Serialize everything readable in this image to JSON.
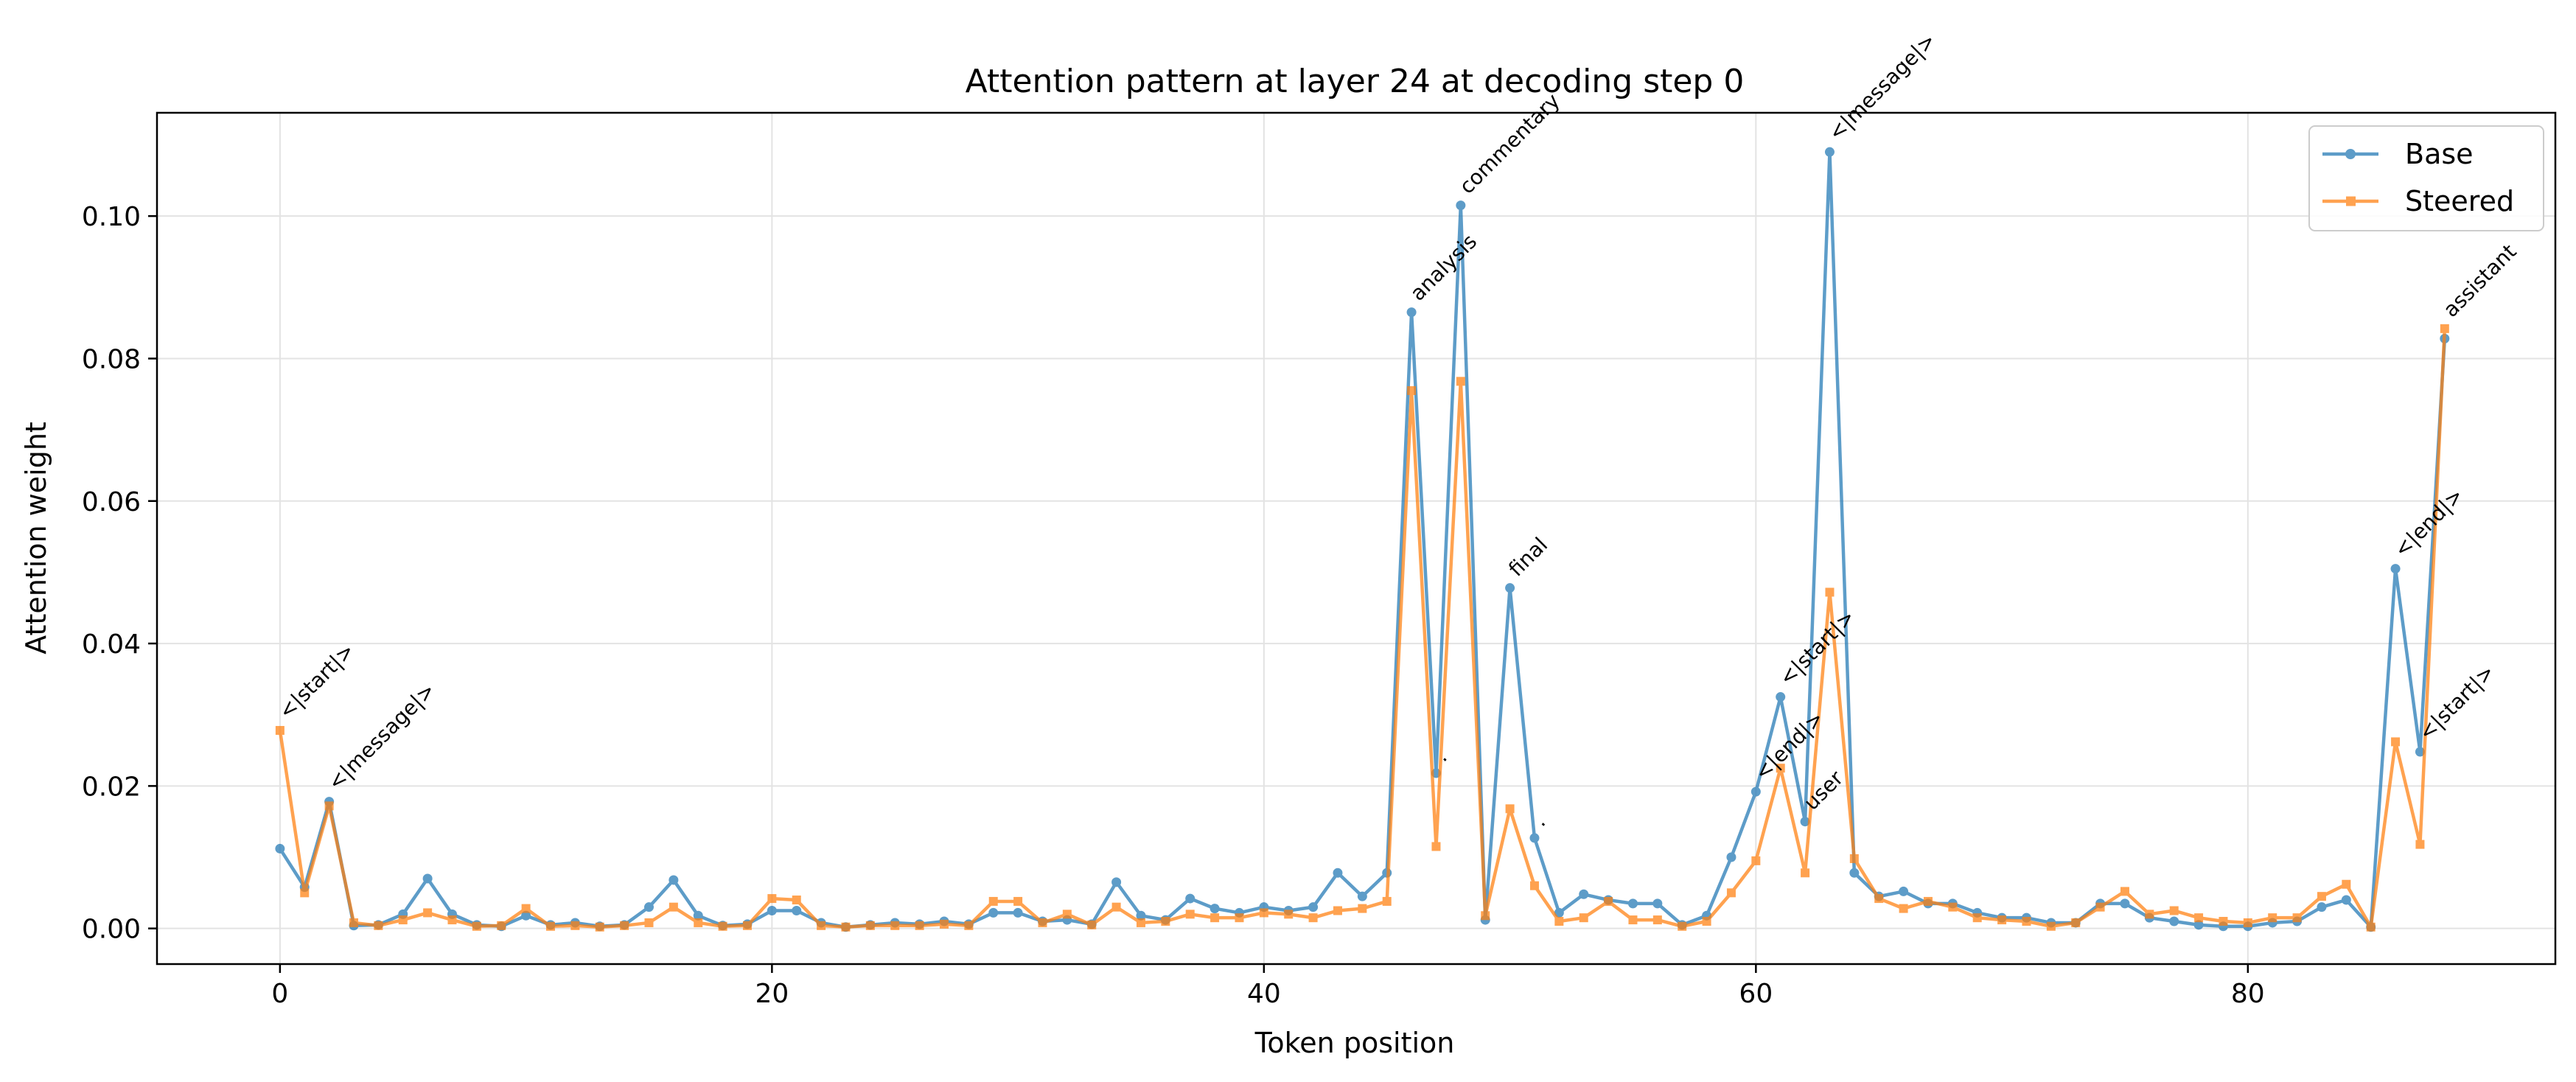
{
  "chart_data": {
    "type": "line",
    "title": "Attention pattern at layer 24 at decoding step 0",
    "xlabel": "Token position",
    "ylabel": "Attention weight",
    "xlim": [
      -5,
      92.5
    ],
    "ylim": [
      -0.005,
      0.1145
    ],
    "xticks": [
      0,
      20,
      40,
      60,
      80
    ],
    "yticks": [
      0.0,
      0.02,
      0.04,
      0.06,
      0.08,
      0.1
    ],
    "ytick_labels": [
      "0.00",
      "0.02",
      "0.04",
      "0.06",
      "0.08",
      "0.10"
    ],
    "grid": true,
    "legend_position": "top-right",
    "series": [
      {
        "name": "Base",
        "color": "#1f77b4",
        "marker": "circle",
        "values": [
          0.0112,
          0.0058,
          0.0178,
          0.0004,
          0.0005,
          0.002,
          0.007,
          0.002,
          0.0005,
          0.0003,
          0.0018,
          0.0005,
          0.0008,
          0.0003,
          0.0005,
          0.003,
          0.0068,
          0.0018,
          0.0004,
          0.0006,
          0.0025,
          0.0025,
          0.0008,
          0.0002,
          0.0005,
          0.0008,
          0.0006,
          0.001,
          0.0006,
          0.0022,
          0.0022,
          0.001,
          0.0012,
          0.0006,
          0.0065,
          0.0018,
          0.0012,
          0.0042,
          0.0028,
          0.0022,
          0.003,
          0.0025,
          0.003,
          0.0078,
          0.0045,
          0.0078,
          0.0865,
          0.0218,
          0.1015,
          0.0012,
          0.0478,
          0.0127,
          0.0022,
          0.0048,
          0.004,
          0.0035,
          0.0035,
          0.0005,
          0.0018,
          0.01,
          0.0192,
          0.0325,
          0.015,
          0.109,
          0.0078,
          0.0045,
          0.0052,
          0.0035,
          0.0035,
          0.0022,
          0.0015,
          0.0015,
          0.0008,
          0.0008,
          0.0035,
          0.0035,
          0.0015,
          0.001,
          0.0005,
          0.0003,
          0.0003,
          0.0008,
          0.001,
          0.003,
          0.004,
          0.0002,
          0.0505,
          0.0248,
          0.0828
        ]
      },
      {
        "name": "Steered",
        "color": "#ff7f0e",
        "marker": "square",
        "values": [
          0.0278,
          0.005,
          0.0172,
          0.0008,
          0.0004,
          0.0012,
          0.0022,
          0.0012,
          0.0003,
          0.0004,
          0.0028,
          0.0003,
          0.0004,
          0.0002,
          0.0004,
          0.0008,
          0.003,
          0.0008,
          0.0003,
          0.0004,
          0.0042,
          0.004,
          0.0004,
          0.0002,
          0.0004,
          0.0004,
          0.0004,
          0.0006,
          0.0004,
          0.0038,
          0.0038,
          0.0008,
          0.002,
          0.0005,
          0.003,
          0.0008,
          0.001,
          0.002,
          0.0015,
          0.0015,
          0.0022,
          0.002,
          0.0015,
          0.0025,
          0.0028,
          0.0038,
          0.0755,
          0.0115,
          0.0768,
          0.0018,
          0.0168,
          0.006,
          0.001,
          0.0015,
          0.0038,
          0.0012,
          0.0012,
          0.0003,
          0.001,
          0.005,
          0.0095,
          0.0225,
          0.0078,
          0.0472,
          0.0098,
          0.0042,
          0.0028,
          0.0038,
          0.003,
          0.0015,
          0.0012,
          0.001,
          0.0003,
          0.0008,
          0.003,
          0.0052,
          0.002,
          0.0025,
          0.0015,
          0.001,
          0.0008,
          0.0015,
          0.0015,
          0.0045,
          0.0062,
          0.0002,
          0.0262,
          0.0118,
          0.0842
        ]
      }
    ],
    "annotations": [
      {
        "x": 0,
        "y": 0.0278,
        "text": "<|start|>"
      },
      {
        "x": 2,
        "y": 0.0178,
        "text": "<|message|>"
      },
      {
        "x": 46,
        "y": 0.0865,
        "text": "analysis"
      },
      {
        "x": 47,
        "y": 0.0218,
        "text": "."
      },
      {
        "x": 48,
        "y": 0.1015,
        "text": "commentary"
      },
      {
        "x": 50,
        "y": 0.0478,
        "text": "final"
      },
      {
        "x": 51,
        "y": 0.0127,
        "text": "."
      },
      {
        "x": 61,
        "y": 0.0325,
        "text": "<|start|>"
      },
      {
        "x": 60,
        "y": 0.0192,
        "text": "<|end|>"
      },
      {
        "x": 62,
        "y": 0.015,
        "text": "user"
      },
      {
        "x": 63,
        "y": 0.109,
        "text": "<|message|>"
      },
      {
        "x": 86,
        "y": 0.0505,
        "text": "<|end|>"
      },
      {
        "x": 87,
        "y": 0.0248,
        "text": "<|start|>"
      },
      {
        "x": 88,
        "y": 0.0842,
        "text": "assistant"
      }
    ]
  }
}
